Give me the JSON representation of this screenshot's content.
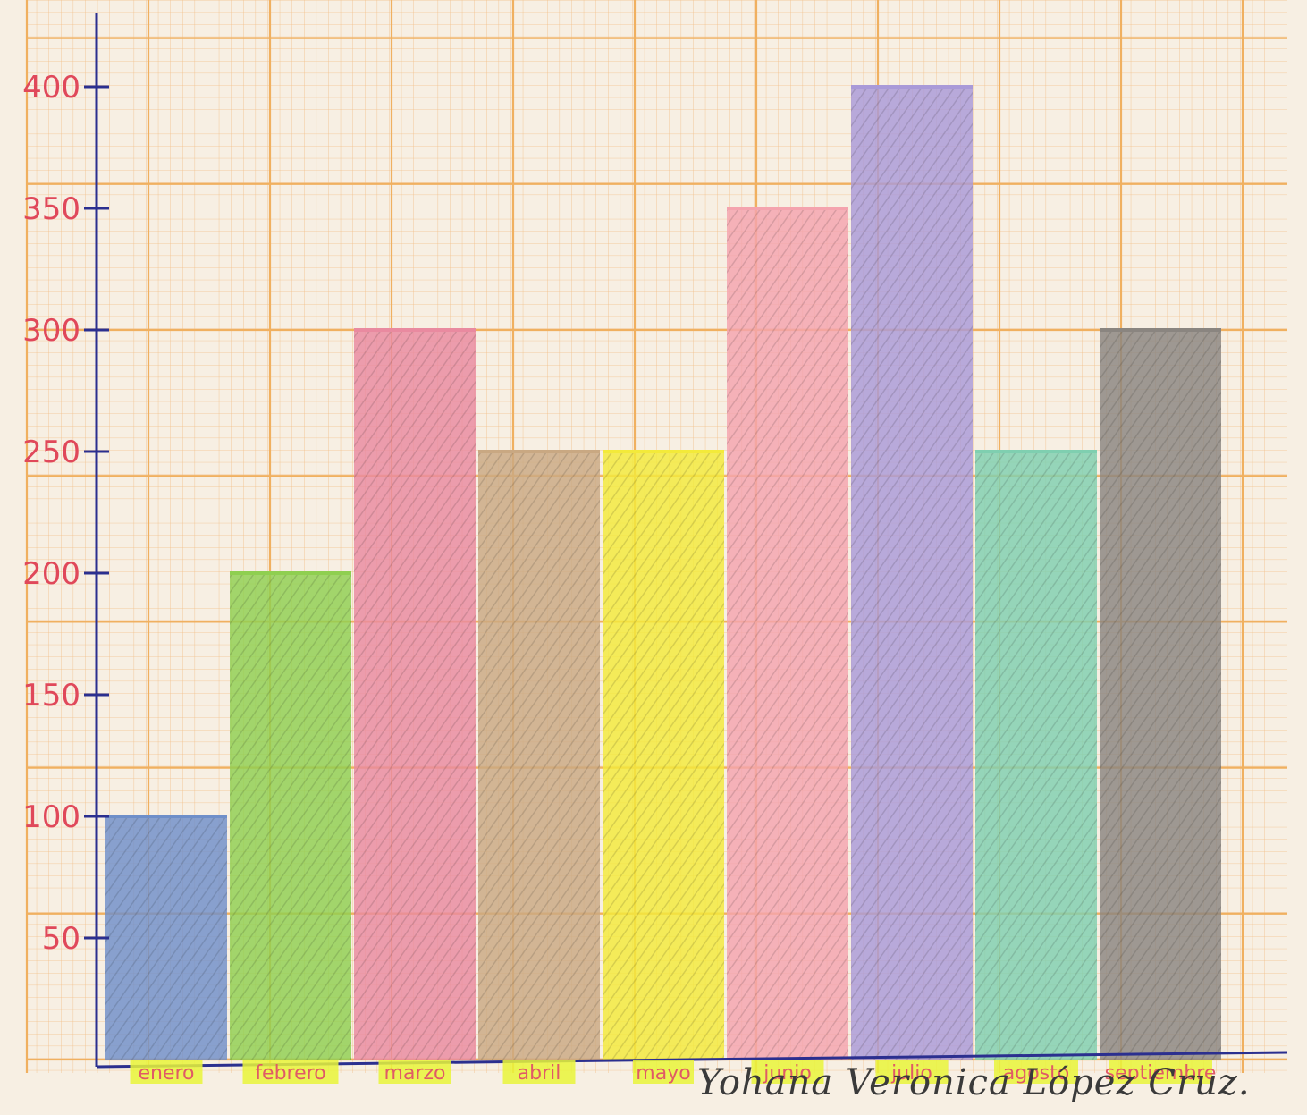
{
  "chart_data": {
    "type": "bar",
    "title": "",
    "xlabel": "",
    "ylabel": "",
    "categories": [
      "enero",
      "febrero",
      "marzo",
      "abril",
      "mayo",
      "junio",
      "julio",
      "agosto",
      "septiembre"
    ],
    "values": [
      100,
      200,
      300,
      250,
      250,
      350,
      400,
      250,
      300
    ],
    "colors": [
      "#6f8fc9",
      "#8fcf50",
      "#e98aa0",
      "#c9a882",
      "#f3ea3a",
      "#f4a3ae",
      "#a99ad8",
      "#7fcfb0",
      "#8a8580"
    ],
    "y_ticks": [
      50,
      100,
      150,
      200,
      250,
      300,
      350,
      400
    ],
    "y_tick_labels": [
      "50",
      "100",
      "150",
      "200",
      "250",
      "300",
      "350",
      "400"
    ],
    "ylim": [
      0,
      420
    ],
    "grid": true,
    "legend": "none"
  },
  "signature": "Yohana Veronica López Cruz."
}
